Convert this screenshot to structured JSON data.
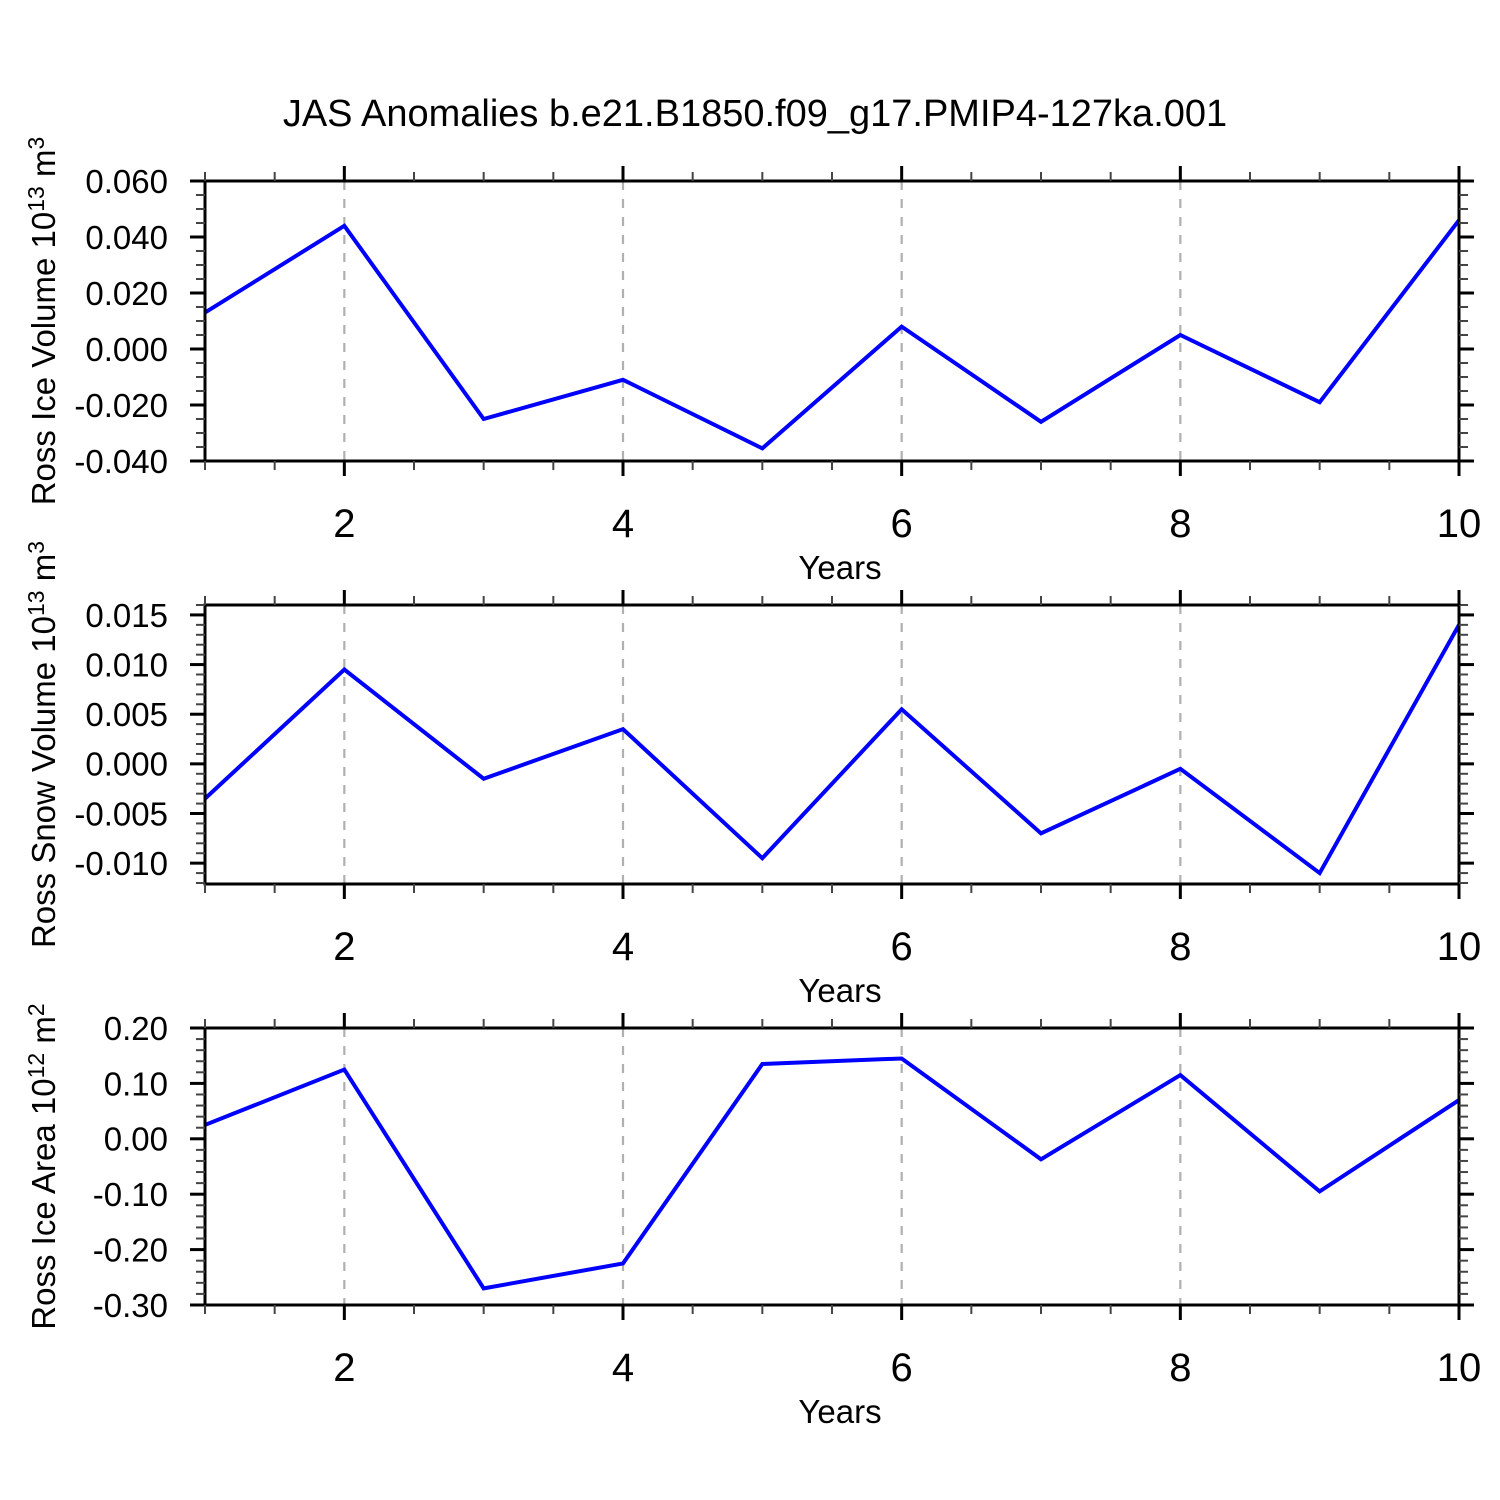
{
  "title": "JAS Anomalies b.e21.B1850.f09_g17.PMIP4-127ka.001",
  "colors": {
    "line": "#0000ff",
    "grid": "#b0b0b0",
    "axis": "#000000",
    "minor_tick": "#444444",
    "text": "#000000",
    "background": "#ffffff"
  },
  "x_axis": {
    "label": "Years",
    "min": 1,
    "max": 10,
    "major_ticks": [
      2,
      4,
      6,
      8,
      10
    ],
    "major_tick_labels": [
      "2",
      "4",
      "6",
      "8",
      "10"
    ],
    "minor_step": 0.5,
    "gridline_years": [
      2,
      4,
      6,
      8
    ],
    "grid_style": "dashed"
  },
  "chart_data": [
    {
      "type": "line",
      "name": "ross-ice-volume",
      "ylabel": "Ross Ice Volume 10^13 m^3",
      "ylabel_parts": [
        {
          "t": "Ross Ice Volume 10",
          "sup": false
        },
        {
          "t": "13",
          "sup": true
        },
        {
          "t": " m",
          "sup": false
        },
        {
          "t": "3",
          "sup": true
        }
      ],
      "xlabel": "Years",
      "x": [
        1,
        2,
        3,
        4,
        5,
        6,
        7,
        8,
        9,
        10
      ],
      "values": [
        0.013,
        0.044,
        -0.025,
        -0.011,
        -0.0355,
        0.008,
        -0.026,
        0.005,
        -0.019,
        0.046
      ],
      "ylim": [
        -0.04,
        0.06
      ],
      "ytick_values": [
        0.06,
        0.04,
        0.02,
        0.0,
        -0.02,
        -0.04
      ],
      "ytick_labels": [
        "0.060",
        "0.040",
        "0.020",
        "0.000",
        "-0.020",
        "-0.040"
      ],
      "ytick_minor_step": 0.005
    },
    {
      "type": "line",
      "name": "ross-snow-volume",
      "ylabel": "Ross Snow Volume 10^13 m^3",
      "ylabel_parts": [
        {
          "t": "Ross Snow Volume 10",
          "sup": false
        },
        {
          "t": "13",
          "sup": true
        },
        {
          "t": " m",
          "sup": false
        },
        {
          "t": "3",
          "sup": true
        }
      ],
      "xlabel": "Years",
      "x": [
        1,
        2,
        3,
        4,
        5,
        6,
        7,
        8,
        9,
        10
      ],
      "values": [
        -0.0035,
        0.0095,
        -0.0015,
        0.0035,
        -0.0095,
        0.0055,
        -0.007,
        -0.0005,
        -0.011,
        0.014
      ],
      "ylim": [
        -0.0121,
        0.016
      ],
      "ytick_values": [
        0.015,
        0.01,
        0.005,
        0.0,
        -0.005,
        -0.01
      ],
      "ytick_labels": [
        "0.015",
        "0.010",
        "0.005",
        "0.000",
        "-0.005",
        "-0.010"
      ],
      "ytick_minor_step": 0.001
    },
    {
      "type": "line",
      "name": "ross-ice-area",
      "ylabel": "Ross Ice Area 10^12 m^2",
      "ylabel_parts": [
        {
          "t": "Ross Ice Area 10",
          "sup": false
        },
        {
          "t": "12",
          "sup": true
        },
        {
          "t": " m",
          "sup": false
        },
        {
          "t": "2",
          "sup": true
        }
      ],
      "xlabel": "Years",
      "x": [
        1,
        2,
        3,
        4,
        5,
        6,
        7,
        8,
        9,
        10
      ],
      "values": [
        0.025,
        0.125,
        -0.27,
        -0.225,
        0.135,
        0.145,
        -0.037,
        0.115,
        -0.095,
        0.07
      ],
      "ylim": [
        -0.3,
        0.2
      ],
      "ytick_values": [
        0.2,
        0.1,
        0.0,
        -0.1,
        -0.2,
        -0.3
      ],
      "ytick_labels": [
        "0.20",
        "0.10",
        "0.00",
        "-0.10",
        "-0.20",
        "-0.30"
      ],
      "ytick_minor_step": 0.02
    }
  ]
}
